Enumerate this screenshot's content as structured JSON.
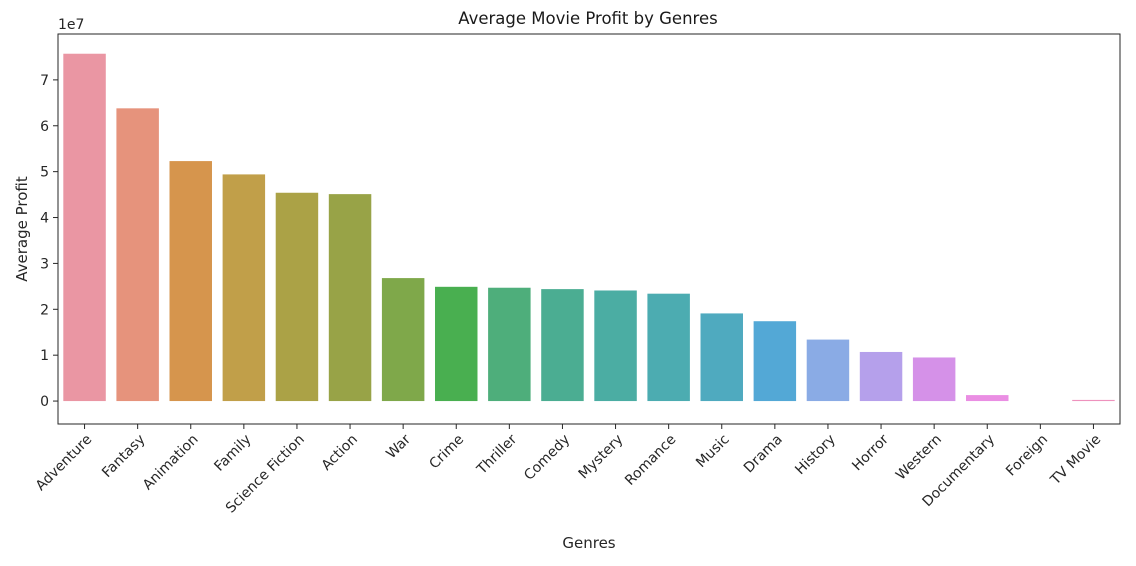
{
  "chart_data": {
    "type": "bar",
    "title": "Average Movie Profit by Genres",
    "xlabel": "Genres",
    "ylabel": "Average Profit",
    "y_offset_label": "1e7",
    "y_scale": 10000000,
    "ylim": [
      -5000000,
      80000000
    ],
    "yticks": [
      0,
      10000000,
      20000000,
      30000000,
      40000000,
      50000000,
      60000000,
      70000000
    ],
    "ytick_labels": [
      "0",
      "1",
      "2",
      "3",
      "4",
      "5",
      "6",
      "7"
    ],
    "grid": false,
    "categories": [
      "Adventure",
      "Fantasy",
      "Animation",
      "Family",
      "Science Fiction",
      "Action",
      "War",
      "Crime",
      "Thriller",
      "Comedy",
      "Mystery",
      "Romance",
      "Music",
      "Drama",
      "History",
      "Horror",
      "Western",
      "Documentary",
      "Foreign",
      "TV Movie"
    ],
    "values": [
      75700000,
      63800000,
      52300000,
      49400000,
      45400000,
      45100000,
      26800000,
      24900000,
      24700000,
      24400000,
      24100000,
      23400000,
      19100000,
      17400000,
      13400000,
      10700000,
      9500000,
      1300000,
      0,
      250000
    ],
    "colors": [
      "#ea96a3",
      "#e6937c",
      "#d6954d",
      "#c19f49",
      "#aba246",
      "#98a347",
      "#7fa84a",
      "#49af50",
      "#4eae7b",
      "#4bad92",
      "#4bada3",
      "#4cacb1",
      "#4faabf",
      "#53a8d6",
      "#8aabe5",
      "#b5a0eb",
      "#d591e8",
      "#ea8ee3",
      "#ee8fd2",
      "#ee92bd"
    ]
  }
}
